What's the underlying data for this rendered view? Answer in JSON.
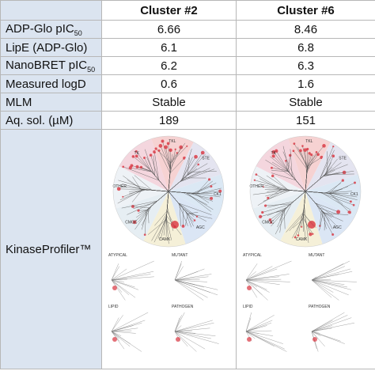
{
  "table": {
    "columns": [
      "Cluster #2",
      "Cluster #6"
    ],
    "rows": [
      {
        "label": "ADP-Glo pIC",
        "sub": "50",
        "values": [
          6.66,
          8.46
        ]
      },
      {
        "label": "LipE (ADP-Glo)",
        "values": [
          6.1,
          6.8
        ]
      },
      {
        "label": "NanoBRET pIC",
        "sub": "50",
        "values": [
          6.2,
          6.3
        ]
      },
      {
        "label": "Measured logD",
        "values": [
          0.6,
          1.6
        ]
      },
      {
        "label": "MLM",
        "values": [
          "Stable",
          "Stable"
        ]
      },
      {
        "label": "Aq. sol. (µM)",
        "values": [
          189,
          151
        ]
      }
    ],
    "profiler_label": "KinaseProfiler™"
  },
  "kinome": {
    "groups": [
      "TK",
      "TKL",
      "STE",
      "CK1",
      "AGC",
      "CAMK",
      "CMGC",
      "OTHER"
    ],
    "panels": [
      "ATYPICAL",
      "MUTANT",
      "LIPID",
      "PATHOGEN"
    ]
  }
}
